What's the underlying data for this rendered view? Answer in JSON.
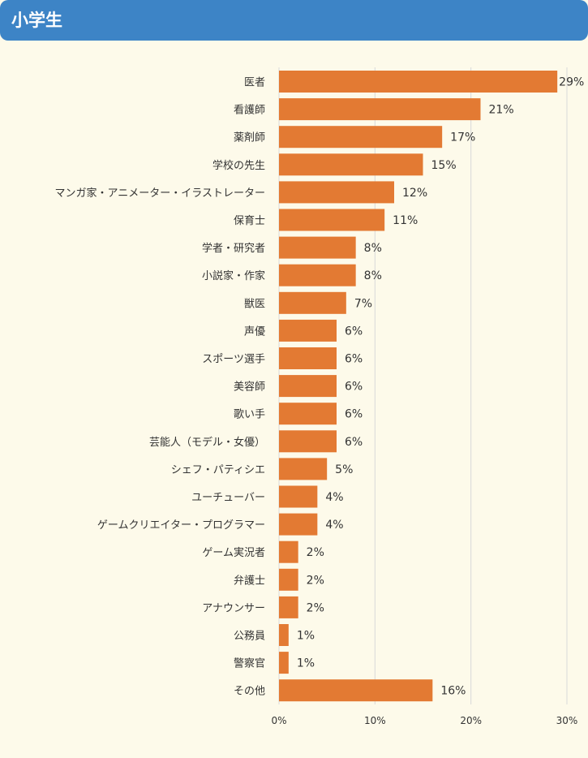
{
  "header": {
    "title": "小学生"
  },
  "chart_data": {
    "type": "bar",
    "orientation": "horizontal",
    "title": "小学生",
    "categories": [
      "医者",
      "看護師",
      "薬剤師",
      "学校の先生",
      "マンガ家・アニメーター・イラストレーター",
      "保育士",
      "学者・研究者",
      "小説家・作家",
      "獣医",
      "声優",
      "スポーツ選手",
      "美容師",
      "歌い手",
      "芸能人（モデル・女優）",
      "シェフ・パティシエ",
      "ユーチューバー",
      "ゲームクリエイター・プログラマー",
      "ゲーム実況者",
      "弁護士",
      "アナウンサー",
      "公務員",
      "警察官",
      "その他"
    ],
    "values": [
      29,
      21,
      17,
      15,
      12,
      11,
      8,
      8,
      7,
      6,
      6,
      6,
      6,
      6,
      5,
      4,
      4,
      2,
      2,
      2,
      1,
      1,
      16
    ],
    "value_labels": [
      "29%",
      "21%",
      "17%",
      "15%",
      "12%",
      "11%",
      "8%",
      "8%",
      "7%",
      "6%",
      "6%",
      "6%",
      "6%",
      "6%",
      "5%",
      "4%",
      "4%",
      "2%",
      "2%",
      "2%",
      "1%",
      "1%",
      "16%"
    ],
    "xlim": [
      0,
      30
    ],
    "xticks": [
      "0%",
      "10%",
      "20%",
      "30%"
    ],
    "grid": true,
    "bar_color": "#e37a33"
  }
}
